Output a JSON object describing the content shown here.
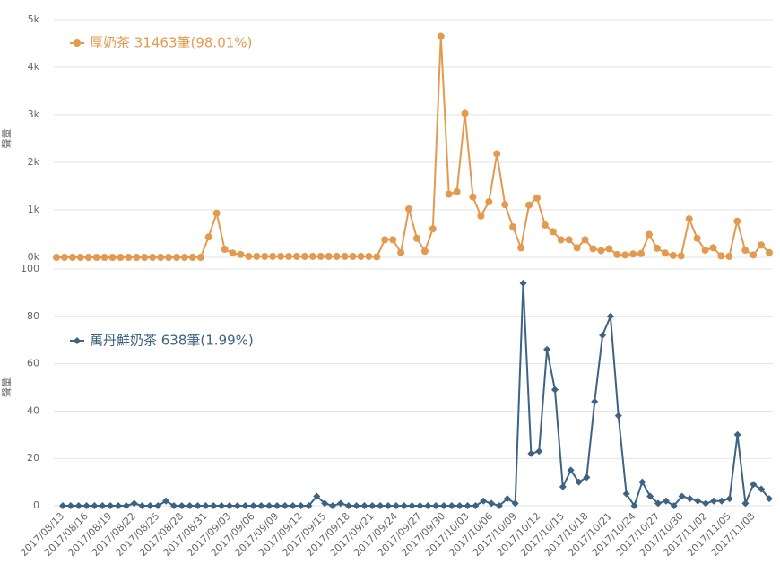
{
  "chart_data": [
    {
      "type": "line",
      "y_label": "聲量",
      "marker": "circle",
      "grid": true,
      "series": [
        {
          "name": "厚奶茶 31463筆(98.01%)",
          "color": "#e39a4f",
          "values": [
            0,
            0,
            0,
            0,
            0,
            0,
            0,
            0,
            0,
            0,
            0,
            0,
            0,
            0,
            0,
            0,
            0,
            0,
            0,
            430,
            930,
            170,
            90,
            60,
            20,
            20,
            20,
            20,
            20,
            20,
            20,
            20,
            20,
            20,
            20,
            20,
            20,
            20,
            20,
            20,
            10,
            370,
            370,
            100,
            1020,
            400,
            130,
            600,
            4650,
            1330,
            1380,
            3030,
            1270,
            870,
            1170,
            2180,
            1110,
            640,
            200,
            1100,
            1250,
            680,
            540,
            370,
            370,
            200,
            370,
            180,
            140,
            180,
            60,
            50,
            70,
            80,
            480,
            190,
            90,
            40,
            30,
            810,
            400,
            150,
            200,
            30,
            20,
            760,
            150,
            50,
            260,
            100
          ]
        }
      ],
      "ylim": [
        0,
        5000
      ],
      "yticks": [
        {
          "value": 0,
          "label": "0k"
        },
        {
          "value": 1000,
          "label": "1k"
        },
        {
          "value": 2000,
          "label": "2k"
        },
        {
          "value": 3000,
          "label": "3k"
        },
        {
          "value": 4000,
          "label": "4k"
        },
        {
          "value": 5000,
          "label": "5k"
        }
      ]
    },
    {
      "type": "line",
      "y_label": "聲量",
      "marker": "diamond",
      "grid": true,
      "categories": [
        "2017/08/13",
        null,
        null,
        "2017/08/16",
        null,
        null,
        "2017/08/19",
        null,
        null,
        "2017/08/22",
        null,
        null,
        "2017/08/25",
        null,
        null,
        "2017/08/28",
        null,
        null,
        "2017/08/31",
        null,
        null,
        "2017/09/03",
        null,
        null,
        "2017/09/06",
        null,
        null,
        "2017/09/09",
        null,
        null,
        "2017/09/12",
        null,
        null,
        "2017/09/15",
        null,
        null,
        "2017/09/18",
        null,
        null,
        "2017/09/21",
        null,
        null,
        "2017/09/24",
        null,
        null,
        "2017/09/27",
        null,
        null,
        "2017/09/30",
        null,
        null,
        "2017/10/03",
        null,
        null,
        "2017/10/06",
        null,
        null,
        "2017/10/09",
        null,
        null,
        "2017/10/12",
        null,
        null,
        "2017/10/15",
        null,
        null,
        "2017/10/18",
        null,
        null,
        "2017/10/21",
        null,
        null,
        "2017/10/24",
        null,
        null,
        "2017/10/27",
        null,
        null,
        "2017/10/30",
        null,
        null,
        "2017/11/02",
        null,
        null,
        "2017/11/05",
        null,
        null,
        "2017/11/08",
        null,
        null
      ],
      "series": [
        {
          "name": "萬丹鮮奶茶 638筆(1.99%)",
          "color": "#3d6384",
          "values": [
            0,
            0,
            0,
            0,
            0,
            0,
            0,
            0,
            0,
            1,
            0,
            0,
            0,
            2,
            0,
            0,
            0,
            0,
            0,
            0,
            0,
            0,
            0,
            0,
            0,
            0,
            0,
            0,
            0,
            0,
            0,
            0,
            4,
            1,
            0,
            1,
            0,
            0,
            0,
            0,
            0,
            0,
            0,
            0,
            0,
            0,
            0,
            0,
            0,
            0,
            0,
            0,
            0,
            2,
            1,
            0,
            3,
            1,
            94,
            22,
            23,
            66,
            49,
            8,
            15,
            10,
            12,
            44,
            72,
            80,
            38,
            5,
            0,
            10,
            4,
            1,
            2,
            0,
            4,
            3,
            2,
            1,
            2,
            2,
            3,
            30,
            1,
            9,
            7,
            3
          ]
        }
      ],
      "ylim": [
        0,
        100
      ],
      "yticks": [
        0,
        20,
        40,
        60,
        80,
        100
      ]
    }
  ]
}
